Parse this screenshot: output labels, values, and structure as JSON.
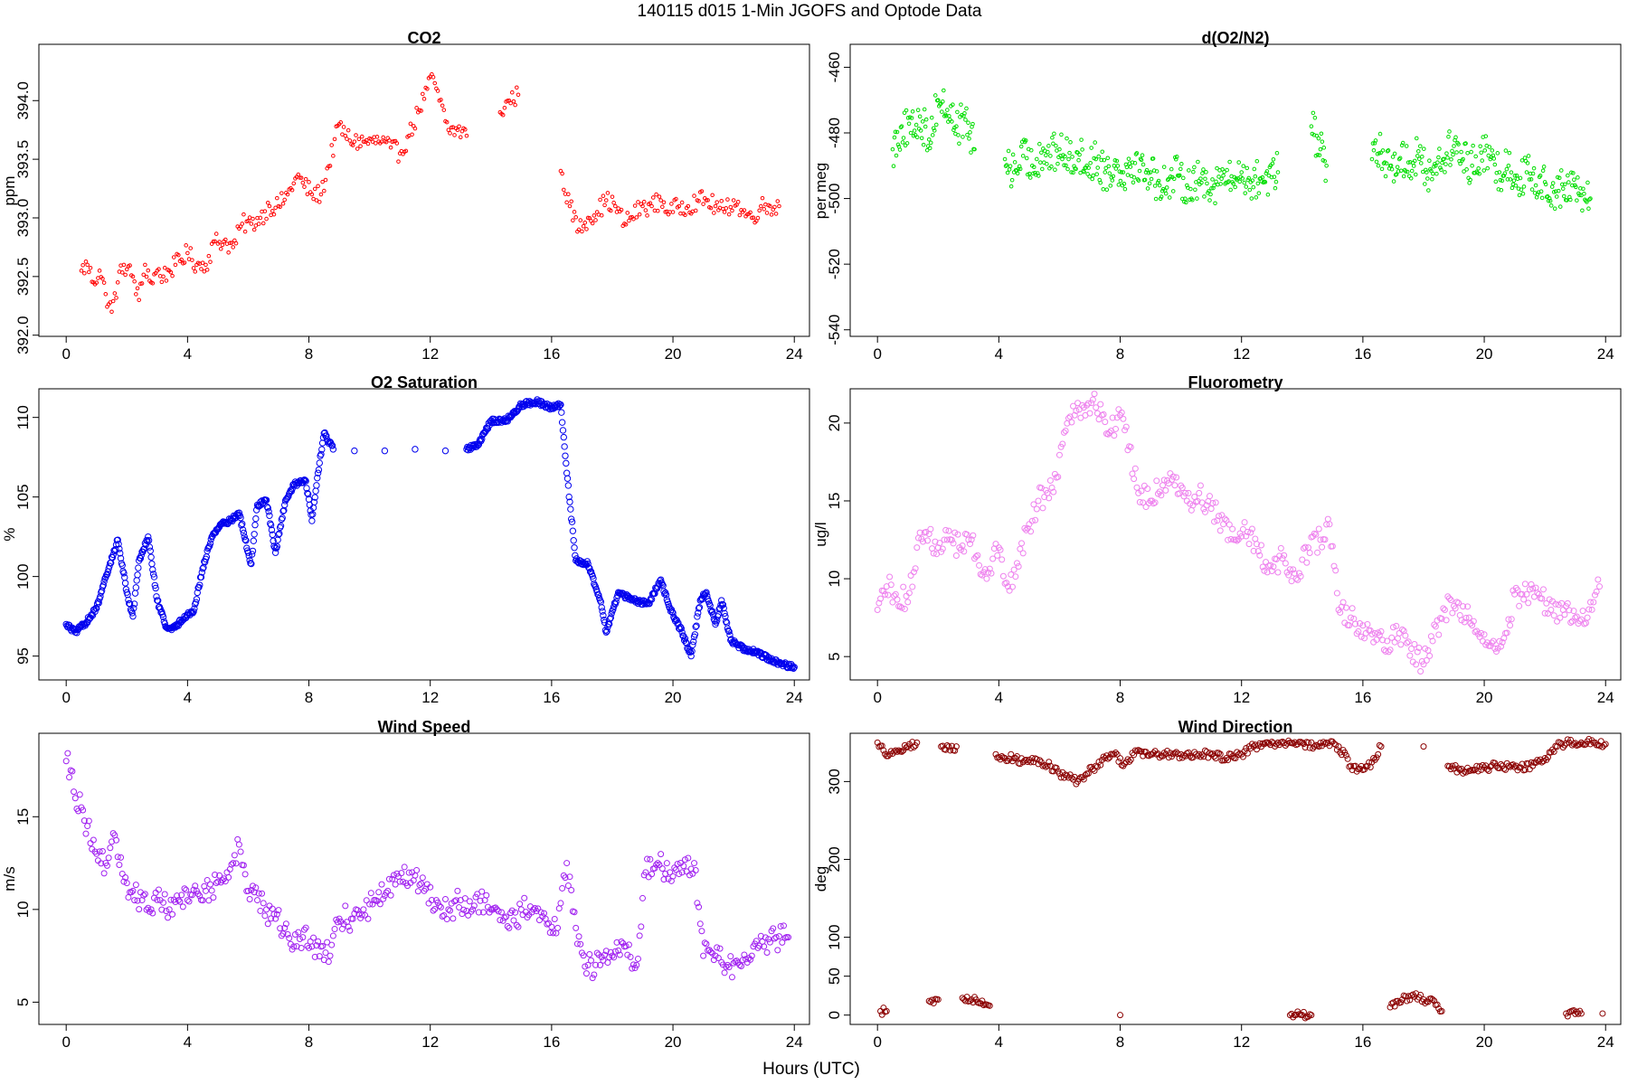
{
  "figure": {
    "suptitle": "140115   d015   1-Min  JGOFS and Optode Data",
    "xlabel": "Hours (UTC)"
  },
  "chart_data": [
    {
      "id": "co2",
      "type": "scatter",
      "title": "CO2",
      "ylabel": "ppm",
      "color": "#ff0000",
      "marker": "open-circle-small",
      "xlim": [
        -0.9,
        24.5
      ],
      "ylim": [
        391.99,
        394.48
      ],
      "xticks": [
        0,
        4,
        8,
        12,
        16,
        20,
        24
      ],
      "yticks": [
        392.0,
        392.5,
        393.0,
        393.5,
        394.0
      ],
      "ytick_labels": [
        "392.0",
        "392.5",
        "393.0",
        "393.5",
        "394.0"
      ],
      "series": [
        {
          "x": [
            0.5,
            0.7,
            0.9,
            1.1,
            1.3,
            1.5,
            1.7,
            1.9,
            2.2,
            2.4,
            2.6,
            2.8,
            3.0,
            3.2,
            3.4,
            3.6,
            4.0,
            4.3,
            4.6,
            4.9,
            5.2,
            5.5,
            5.8,
            6.1,
            6.4,
            6.7,
            7.0,
            7.3,
            7.6,
            7.8,
            8.1,
            8.4,
            9.0,
            9.2,
            9.5,
            9.8,
            10.1,
            10.4,
            10.7,
            11.0,
            11.3,
            11.6,
            11.9,
            12.1,
            12.3,
            12.6,
            12.9,
            13.2,
            14.3,
            14.6,
            14.9,
            16.3,
            16.6,
            16.9,
            17.2,
            17.5,
            17.8,
            18.1,
            18.4,
            19.0,
            19.3,
            19.6,
            19.9,
            20.2,
            20.5,
            20.8,
            21.1,
            21.4,
            21.7,
            22.0,
            22.3,
            22.6,
            22.9,
            23.2,
            23.5
          ],
          "y": [
            392.55,
            392.6,
            392.45,
            392.55,
            392.35,
            392.2,
            392.45,
            392.6,
            392.5,
            392.3,
            392.6,
            392.45,
            392.55,
            392.5,
            392.55,
            392.6,
            392.7,
            392.6,
            392.6,
            392.8,
            392.8,
            392.75,
            392.95,
            392.95,
            393.0,
            393.1,
            393.1,
            393.2,
            393.35,
            393.3,
            393.2,
            393.2,
            393.8,
            393.7,
            393.65,
            393.65,
            393.65,
            393.65,
            393.6,
            393.55,
            393.7,
            393.9,
            394.1,
            394.2,
            394.0,
            393.75,
            393.75,
            393.7,
            393.9,
            394.0,
            394.05,
            393.4,
            393.1,
            392.9,
            393.0,
            393.05,
            393.15,
            393.1,
            392.95,
            393.1,
            393.1,
            393.15,
            393.05,
            393.1,
            393.1,
            393.15,
            393.15,
            393.1,
            393.05,
            393.15,
            393.05,
            393.0,
            393.1,
            393.1,
            393.1
          ]
        }
      ]
    },
    {
      "id": "do2n2",
      "type": "scatter",
      "title": "d(O2/N2)",
      "ylabel": "per meg",
      "color": "#00dd00",
      "marker": "open-circle-small",
      "xlim": [
        -0.9,
        24.5
      ],
      "ylim": [
        -542,
        -453
      ],
      "xticks": [
        0,
        4,
        8,
        12,
        16,
        20,
        24
      ],
      "yticks": [
        -460,
        -480,
        -500,
        -520,
        -540
      ],
      "ytick_labels": [
        "-460",
        "-480",
        "-500",
        "-520",
        "-540"
      ],
      "series": [
        {
          "x": [
            0.5,
            0.8,
            1.1,
            1.4,
            1.7,
            2.0,
            2.3,
            2.6,
            2.9,
            3.2,
            4.2,
            4.5,
            4.8,
            5.1,
            5.4,
            5.7,
            6.0,
            6.3,
            6.6,
            6.9,
            7.2,
            7.5,
            7.8,
            8.1,
            8.4,
            9.0,
            9.3,
            9.6,
            9.9,
            10.2,
            10.5,
            10.8,
            11.1,
            11.4,
            11.7,
            12.0,
            12.3,
            12.6,
            12.9,
            13.2,
            14.3,
            14.6,
            14.8,
            16.3,
            16.6,
            16.9,
            17.2,
            17.5,
            17.8,
            18.1,
            18.4,
            19.0,
            19.3,
            19.6,
            19.9,
            20.2,
            20.5,
            20.8,
            21.1,
            21.4,
            21.7,
            22.0,
            22.3,
            22.6,
            22.9,
            23.2,
            23.5
          ],
          "y": [
            -485,
            -478,
            -480,
            -475,
            -482,
            -470,
            -473,
            -478,
            -476,
            -485,
            -488,
            -492,
            -487,
            -490,
            -486,
            -487,
            -485,
            -488,
            -486,
            -490,
            -488,
            -492,
            -490,
            -492,
            -489,
            -492,
            -496,
            -494,
            -493,
            -496,
            -495,
            -494,
            -496,
            -493,
            -495,
            -492,
            -495,
            -494,
            -493,
            -492,
            -478,
            -485,
            -490,
            -488,
            -486,
            -490,
            -488,
            -489,
            -487,
            -492,
            -490,
            -484,
            -488,
            -490,
            -486,
            -488,
            -492,
            -490,
            -494,
            -492,
            -496,
            -495,
            -498,
            -497,
            -496,
            -499,
            -500
          ]
        }
      ]
    },
    {
      "id": "o2sat",
      "type": "line",
      "title": "O2 Saturation",
      "ylabel": "%",
      "color": "#0000ee",
      "marker": "open-circle-dense",
      "xlim": [
        -0.9,
        24.5
      ],
      "ylim": [
        93.5,
        111.8
      ],
      "xticks": [
        0,
        4,
        8,
        12,
        16,
        20,
        24
      ],
      "yticks": [
        95,
        100,
        105,
        110
      ],
      "ytick_labels": [
        "95",
        "100",
        "105",
        "110"
      ],
      "series": [
        {
          "x": [
            0.0,
            0.3,
            0.6,
            1.0,
            1.4,
            1.7,
            2.0,
            2.2,
            2.4,
            2.7,
            3.0,
            3.3,
            3.6,
            3.9,
            4.2,
            4.5,
            4.8,
            5.1,
            5.4,
            5.7,
            6.0,
            6.1,
            6.3,
            6.6,
            6.9,
            7.2,
            7.5,
            7.9,
            8.1,
            8.3,
            8.5,
            8.8,
            9.5,
            10.5,
            11.5,
            12.5,
            13.2,
            13.6,
            14.0,
            14.5,
            15.0,
            15.5,
            16.0,
            16.3,
            16.5,
            16.8,
            17.2,
            17.6,
            17.8,
            18.2,
            18.7,
            19.2,
            19.6,
            19.9,
            20.3,
            20.6,
            20.9,
            21.1,
            21.4,
            21.6,
            21.9,
            22.3,
            22.7,
            23.2,
            23.6,
            24.0
          ],
          "y": [
            97.0,
            96.5,
            97.0,
            98.0,
            100.5,
            102.3,
            99.0,
            97.5,
            101.0,
            102.5,
            98.5,
            96.8,
            96.8,
            97.5,
            97.8,
            100.5,
            102.5,
            103.3,
            103.5,
            104.0,
            101.5,
            100.8,
            104.5,
            104.8,
            101.5,
            104.5,
            105.8,
            106.0,
            103.5,
            106.5,
            109.0,
            108.0,
            107.9,
            107.9,
            108.0,
            107.9,
            108.0,
            108.3,
            109.8,
            109.8,
            110.8,
            111.0,
            110.6,
            110.8,
            106.5,
            101.0,
            100.8,
            98.5,
            96.5,
            99.0,
            98.5,
            98.3,
            99.8,
            98.0,
            96.5,
            95.0,
            98.5,
            99.0,
            97.0,
            98.5,
            96.0,
            95.5,
            95.3,
            94.8,
            94.5,
            94.3
          ]
        }
      ]
    },
    {
      "id": "fluor",
      "type": "scatter",
      "title": "Fluorometry",
      "ylabel": "ug/l",
      "color": "#ee82ee",
      "marker": "open-circle",
      "xlim": [
        -0.9,
        24.5
      ],
      "ylim": [
        3.5,
        22.2
      ],
      "xticks": [
        0,
        4,
        8,
        12,
        16,
        20,
        24
      ],
      "yticks": [
        5,
        10,
        15,
        20
      ],
      "ytick_labels": [
        "5",
        "10",
        "15",
        "20"
      ],
      "series": [
        {
          "x": [
            0.0,
            0.3,
            0.6,
            1.0,
            1.3,
            1.6,
            2.0,
            2.3,
            2.7,
            3.0,
            3.3,
            3.6,
            4.0,
            4.3,
            4.6,
            5.0,
            5.3,
            5.6,
            5.9,
            6.2,
            6.5,
            6.8,
            7.1,
            7.4,
            7.7,
            8.0,
            8.3,
            8.6,
            9.0,
            9.4,
            9.8,
            10.2,
            10.6,
            11.0,
            11.4,
            11.8,
            12.2,
            12.6,
            13.0,
            13.4,
            13.8,
            14.2,
            14.6,
            14.9,
            15.2,
            15.6,
            16.0,
            16.4,
            16.8,
            17.2,
            17.6,
            18.0,
            18.3,
            18.7,
            19.1,
            19.5,
            19.9,
            20.3,
            20.7,
            21.0,
            21.4,
            21.8,
            22.2,
            22.6,
            23.0,
            23.4,
            23.8
          ],
          "y": [
            8.0,
            9.5,
            9.0,
            8.5,
            12.0,
            13.0,
            12.0,
            12.5,
            12.0,
            12.5,
            11.5,
            10.0,
            12.0,
            9.5,
            11.0,
            13.5,
            15.0,
            15.5,
            16.5,
            19.5,
            20.5,
            21.0,
            21.5,
            20.5,
            19.5,
            20.5,
            18.5,
            15.5,
            15.0,
            16.0,
            16.0,
            15.0,
            15.5,
            14.5,
            13.5,
            12.5,
            13.0,
            11.5,
            10.5,
            11.5,
            10.0,
            12.0,
            12.5,
            13.5,
            8.0,
            7.5,
            7.0,
            6.5,
            6.0,
            6.5,
            5.5,
            4.5,
            6.0,
            8.0,
            8.5,
            7.5,
            6.5,
            6.0,
            6.5,
            9.0,
            9.0,
            9.0,
            8.0,
            8.0,
            7.5,
            7.5,
            9.5
          ]
        }
      ]
    },
    {
      "id": "wspd",
      "type": "scatter",
      "title": "Wind Speed",
      "ylabel": "m/s",
      "color": "#a020f0",
      "marker": "open-circle",
      "xlim": [
        -0.9,
        24.5
      ],
      "ylim": [
        3.8,
        19.5
      ],
      "xticks": [
        0,
        4,
        8,
        12,
        16,
        20,
        24
      ],
      "yticks": [
        5,
        10,
        15
      ],
      "ytick_labels": [
        "5",
        "10",
        "15"
      ],
      "series": [
        {
          "x": [
            0.0,
            0.15,
            0.3,
            0.5,
            0.7,
            1.0,
            1.3,
            1.6,
            1.9,
            2.2,
            2.5,
            2.8,
            3.1,
            3.4,
            3.7,
            4.0,
            4.3,
            4.6,
            5.0,
            5.3,
            5.5,
            5.7,
            6.0,
            6.3,
            6.6,
            6.9,
            7.2,
            7.5,
            7.8,
            8.1,
            8.4,
            8.7,
            9.0,
            9.4,
            9.8,
            10.2,
            10.6,
            11.0,
            11.4,
            11.8,
            12.2,
            12.6,
            13.0,
            13.4,
            13.8,
            14.2,
            14.6,
            15.0,
            15.4,
            15.8,
            16.2,
            16.5,
            16.8,
            17.2,
            17.6,
            18.0,
            18.4,
            18.8,
            19.1,
            19.5,
            19.9,
            20.3,
            20.7,
            21.0,
            21.4,
            21.8,
            22.2,
            22.6,
            23.0,
            23.4,
            23.8
          ],
          "y": [
            18.0,
            17.5,
            16.0,
            15.5,
            14.5,
            13.0,
            12.5,
            14.0,
            11.5,
            11.0,
            10.5,
            10.0,
            10.5,
            10.0,
            10.5,
            10.5,
            11.0,
            11.0,
            11.5,
            12.0,
            12.5,
            13.5,
            11.0,
            10.5,
            10.0,
            9.5,
            9.0,
            8.0,
            8.5,
            8.0,
            8.0,
            7.5,
            9.5,
            9.5,
            10.0,
            10.5,
            11.0,
            11.5,
            12.0,
            11.0,
            10.5,
            10.0,
            10.5,
            10.0,
            10.5,
            10.0,
            9.0,
            10.0,
            10.0,
            9.5,
            9.0,
            12.5,
            9.0,
            7.0,
            7.0,
            7.5,
            8.0,
            7.0,
            12.0,
            12.5,
            12.0,
            12.0,
            12.5,
            7.5,
            7.5,
            7.0,
            7.0,
            7.5,
            8.0,
            8.5,
            8.5
          ]
        }
      ]
    },
    {
      "id": "wdir",
      "type": "scatter",
      "title": "Wind Direction",
      "ylabel": "deg",
      "color": "#8b0000",
      "marker": "open-circle",
      "xlim": [
        -0.9,
        24.5
      ],
      "ylim": [
        -12,
        362
      ],
      "xticks": [
        0,
        4,
        8,
        12,
        16,
        20,
        24
      ],
      "yticks": [
        0,
        50,
        100,
        200,
        300
      ],
      "ytick_labels": [
        "0",
        "50",
        "100",
        "200",
        "300"
      ],
      "series": [
        {
          "x": [
            0.0,
            0.2,
            0.4,
            0.7,
            1.0,
            1.3,
            2.1,
            2.4,
            2.6,
            3.9,
            4.2,
            4.5,
            4.8,
            5.1,
            5.4,
            5.7,
            6.0,
            6.3,
            6.6,
            6.9,
            7.2,
            7.5,
            7.8,
            8.1,
            8.5,
            9.0,
            9.5,
            10.0,
            10.5,
            11.0,
            11.5,
            12.0,
            12.4,
            12.8,
            13.2,
            13.6,
            14.0,
            14.4,
            14.8,
            15.2,
            15.6,
            16.0,
            16.3,
            16.6,
            18.0,
            18.8,
            19.2,
            19.6,
            20.0,
            20.4,
            20.8,
            21.2,
            21.6,
            22.0,
            22.4,
            22.8,
            23.2,
            23.6,
            24.0,
            0.1,
            0.3,
            1.7,
            2.0,
            2.8,
            3.1,
            3.4,
            3.7,
            8.0,
            13.6,
            14.0,
            14.3,
            16.9,
            17.3,
            17.6,
            18.0,
            18.3,
            18.6,
            22.7,
            23.2,
            23.9
          ],
          "y": [
            350,
            340,
            335,
            340,
            345,
            350,
            345,
            340,
            345,
            335,
            330,
            330,
            325,
            330,
            325,
            320,
            310,
            305,
            300,
            310,
            320,
            330,
            335,
            320,
            340,
            335,
            335,
            335,
            335,
            335,
            330,
            335,
            345,
            350,
            350,
            350,
            350,
            345,
            350,
            345,
            320,
            315,
            325,
            345,
            345,
            320,
            315,
            315,
            318,
            320,
            320,
            318,
            320,
            330,
            345,
            350,
            350,
            350,
            348,
            5,
            5,
            18,
            20,
            22,
            20,
            15,
            12,
            0,
            0,
            0,
            0,
            10,
            20,
            25,
            20,
            20,
            5,
            2,
            2,
            2
          ]
        }
      ]
    }
  ]
}
